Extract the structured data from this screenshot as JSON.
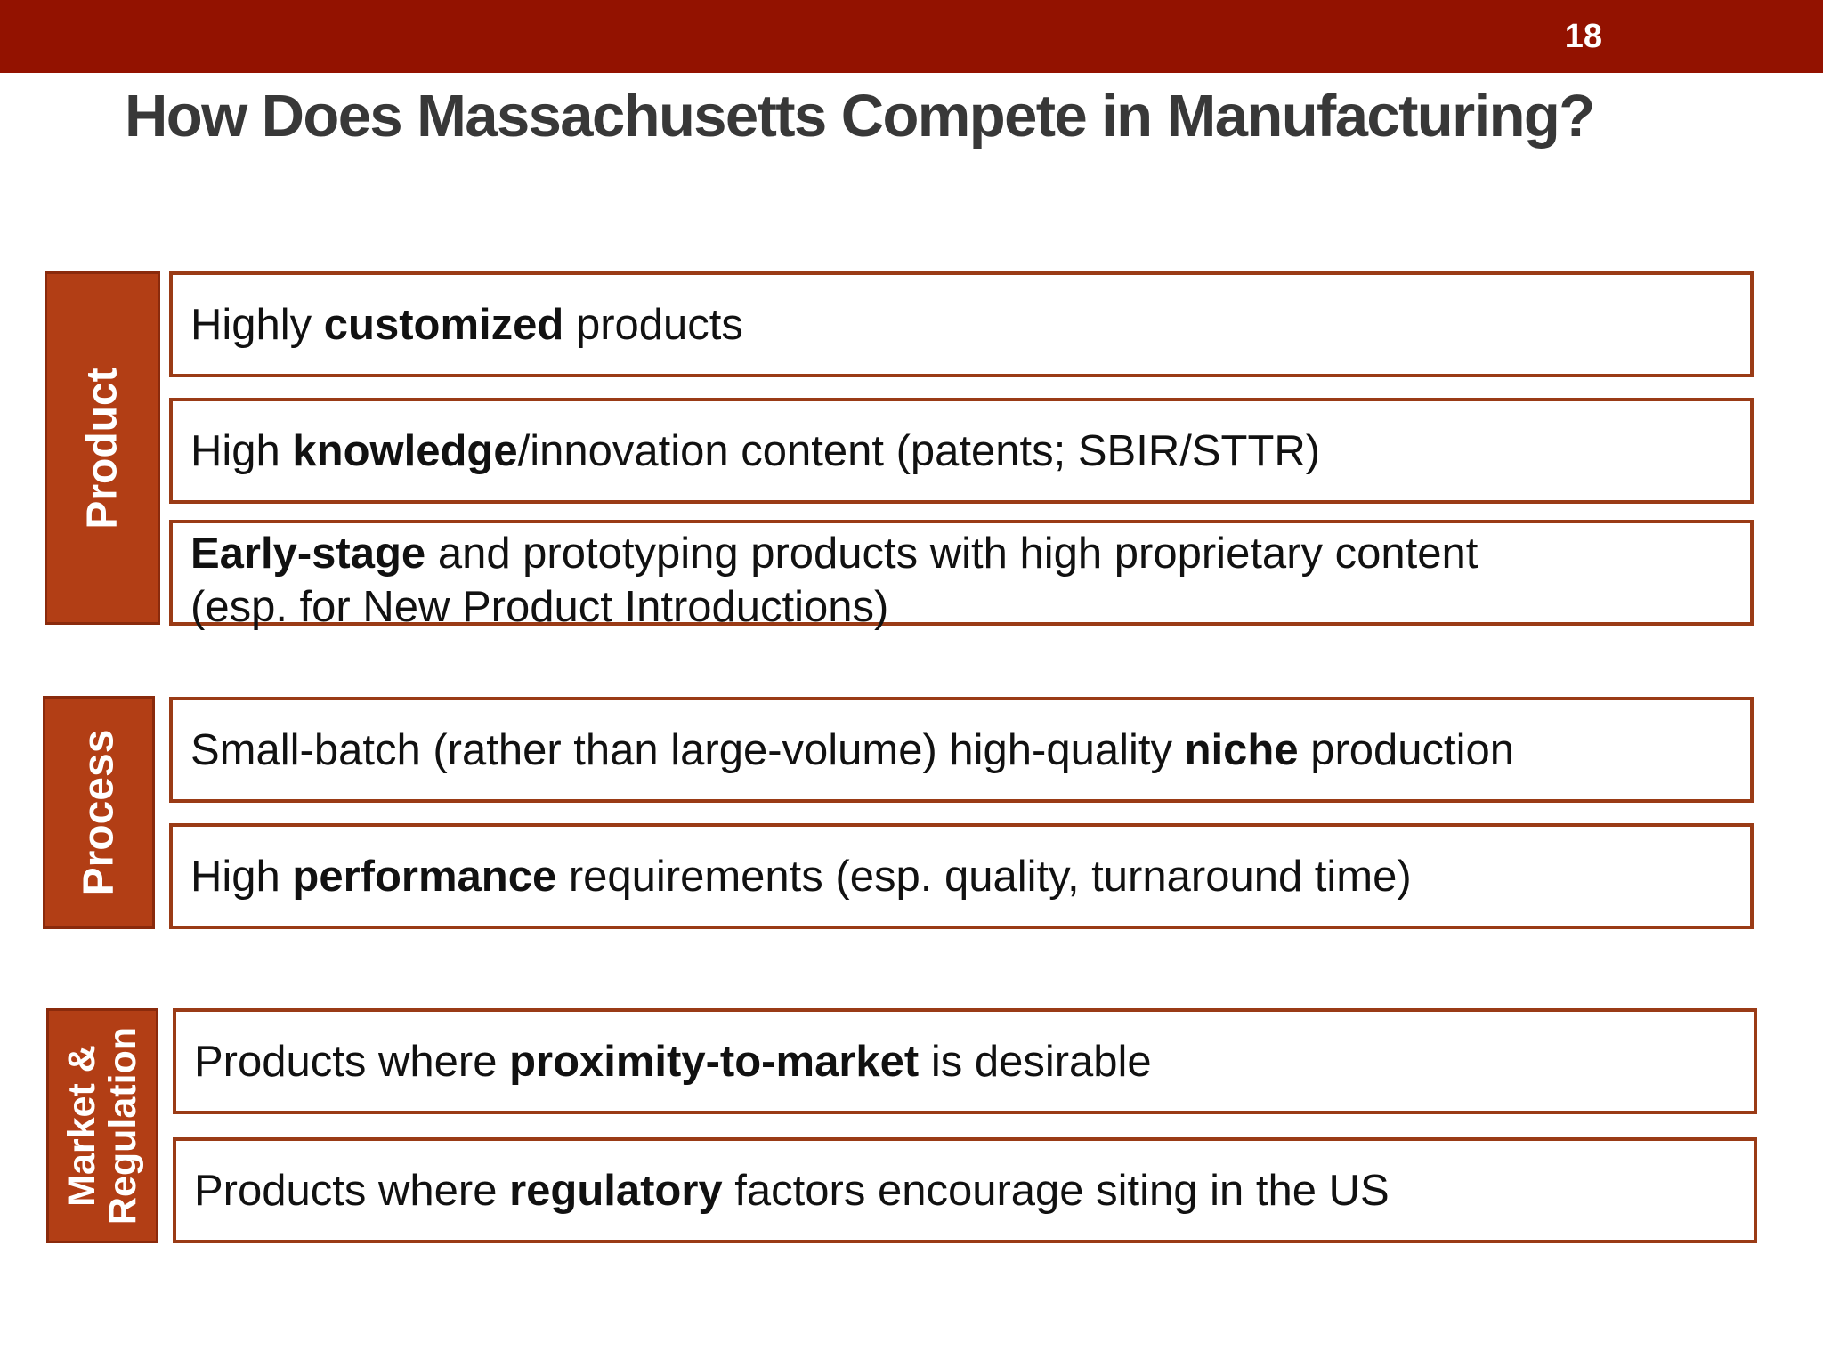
{
  "header": {
    "page_number": "18"
  },
  "title": "How Does Massachusetts Compete in Manufacturing?",
  "colors": {
    "header_bar": "#931200",
    "category_fill": "#b23e15",
    "box_border": "#9a3b16"
  },
  "groups": [
    {
      "label": "Product",
      "items": [
        {
          "pre": "Highly ",
          "bold": "customized",
          "post": " products"
        },
        {
          "pre": "High ",
          "bold": "knowledge",
          "post": "/innovation content (patents; SBIR/STTR)"
        },
        {
          "pre": "",
          "bold": "Early-stage",
          "post": " and prototyping products with high proprietary content",
          "line2": "(esp. for New Product Introductions)"
        }
      ]
    },
    {
      "label": "Process",
      "items": [
        {
          "pre": "Small-batch (rather than large-volume) high-quality ",
          "bold": "niche",
          "post": " production"
        },
        {
          "pre": "High ",
          "bold": "performance",
          "post": " requirements (esp. quality, turnaround time)"
        }
      ]
    },
    {
      "label_line1": "Market &",
      "label_line2": "Regulation",
      "items": [
        {
          "pre": "Products where ",
          "bold": "proximity-to-market",
          "post": " is desirable"
        },
        {
          "pre": "Products where ",
          "bold": "regulatory",
          "post": " factors encourage siting in the US"
        }
      ]
    }
  ]
}
